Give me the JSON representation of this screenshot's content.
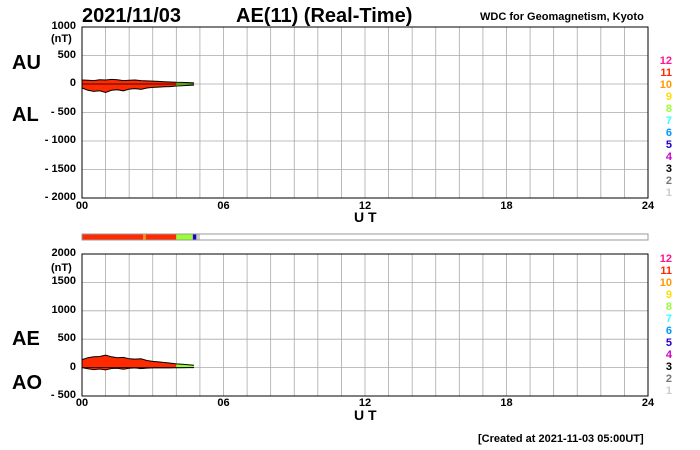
{
  "header": {
    "date": "2021/11/03",
    "title": "AE(11) (Real-Time)",
    "source": "WDC for Geomagnetism, Kyoto"
  },
  "upper_panel": {
    "label_top": "AU",
    "label_bottom": "AL",
    "unit": "(nT)",
    "y_ticks": [
      "1000",
      "500",
      "0",
      "- 500",
      "- 1000",
      "- 1500",
      "- 2000"
    ],
    "x_ticks": [
      "00",
      "06",
      "12",
      "18",
      "24"
    ],
    "xlabel": "U T"
  },
  "lower_panel": {
    "label_top": "AE",
    "label_bottom": "AO",
    "unit": "(nT)",
    "y_ticks": [
      "2000",
      "1500",
      "1000",
      "500",
      "0",
      "- 500"
    ],
    "x_ticks": [
      "00",
      "06",
      "12",
      "18",
      "24"
    ],
    "xlabel": "U T"
  },
  "legend": {
    "items": [
      {
        "label": "12",
        "color": "#ff1493"
      },
      {
        "label": "11",
        "color": "#ff2a00"
      },
      {
        "label": "10",
        "color": "#ff9900"
      },
      {
        "label": "9",
        "color": "#ffdd00"
      },
      {
        "label": "8",
        "color": "#99ff33"
      },
      {
        "label": "7",
        "color": "#33ffff"
      },
      {
        "label": "6",
        "color": "#0099ff"
      },
      {
        "label": "5",
        "color": "#2200cc"
      },
      {
        "label": "4",
        "color": "#cc00cc"
      },
      {
        "label": "3",
        "color": "#000000"
      },
      {
        "label": "2",
        "color": "#777777"
      },
      {
        "label": "1",
        "color": "#cccccc"
      }
    ]
  },
  "footer": "[Created at 2021-11-03 05:00UT]",
  "chart_data": [
    {
      "type": "area",
      "panel": "AU/AL",
      "xlim": [
        0,
        24
      ],
      "ylim": [
        -2000,
        1000
      ],
      "grid": true,
      "series": [
        {
          "name": "AU",
          "x": [
            0,
            0.25,
            0.5,
            0.75,
            1,
            1.25,
            1.5,
            1.75,
            2,
            2.25,
            2.5,
            2.75,
            3,
            3.25,
            3.5,
            3.75,
            4,
            4.25,
            4.5,
            4.75
          ],
          "values": [
            70,
            65,
            60,
            75,
            70,
            80,
            75,
            60,
            65,
            70,
            60,
            55,
            50,
            45,
            40,
            35,
            30,
            28,
            25,
            20
          ]
        },
        {
          "name": "AL",
          "x": [
            0,
            0.25,
            0.5,
            0.75,
            1,
            1.25,
            1.5,
            1.75,
            2,
            2.25,
            2.5,
            2.75,
            3,
            3.25,
            3.5,
            3.75,
            4,
            4.25,
            4.5,
            4.75
          ],
          "values": [
            -70,
            -110,
            -130,
            -120,
            -150,
            -110,
            -100,
            -120,
            -90,
            -80,
            -95,
            -70,
            -60,
            -55,
            -50,
            -45,
            -35,
            -30,
            -25,
            -20
          ]
        }
      ]
    },
    {
      "type": "area",
      "panel": "AE/AO",
      "xlim": [
        0,
        24
      ],
      "ylim": [
        -500,
        2000
      ],
      "grid": true,
      "series": [
        {
          "name": "AE",
          "x": [
            0,
            0.25,
            0.5,
            0.75,
            1,
            1.25,
            1.5,
            1.75,
            2,
            2.25,
            2.5,
            2.75,
            3,
            3.25,
            3.5,
            3.75,
            4,
            4.25,
            4.5,
            4.75
          ],
          "values": [
            140,
            175,
            190,
            195,
            220,
            190,
            175,
            180,
            155,
            150,
            155,
            125,
            110,
            100,
            90,
            80,
            65,
            58,
            50,
            40
          ]
        },
        {
          "name": "AO",
          "x": [
            0,
            0.25,
            0.5,
            0.75,
            1,
            1.25,
            1.5,
            1.75,
            2,
            2.25,
            2.5,
            2.75,
            3,
            3.25,
            3.5,
            3.75,
            4,
            4.25,
            4.5,
            4.75
          ],
          "values": [
            0,
            -20,
            -35,
            -25,
            -40,
            -15,
            -12,
            -30,
            -12,
            -5,
            -18,
            -8,
            -5,
            -5,
            -5,
            -5,
            -3,
            -1,
            0,
            0
          ]
        }
      ]
    }
  ],
  "station_bar": {
    "xlim": [
      0,
      24
    ],
    "segments": [
      {
        "start": 0,
        "end": 2.6,
        "stations": "11"
      },
      {
        "start": 2.6,
        "end": 2.7,
        "stations": "10"
      },
      {
        "start": 2.7,
        "end": 4.0,
        "stations": "11"
      },
      {
        "start": 4.0,
        "end": 4.7,
        "stations": "8"
      },
      {
        "start": 4.7,
        "end": 4.85,
        "stations": "5"
      },
      {
        "start": 4.85,
        "end": 5.0,
        "stations": "1"
      }
    ]
  }
}
